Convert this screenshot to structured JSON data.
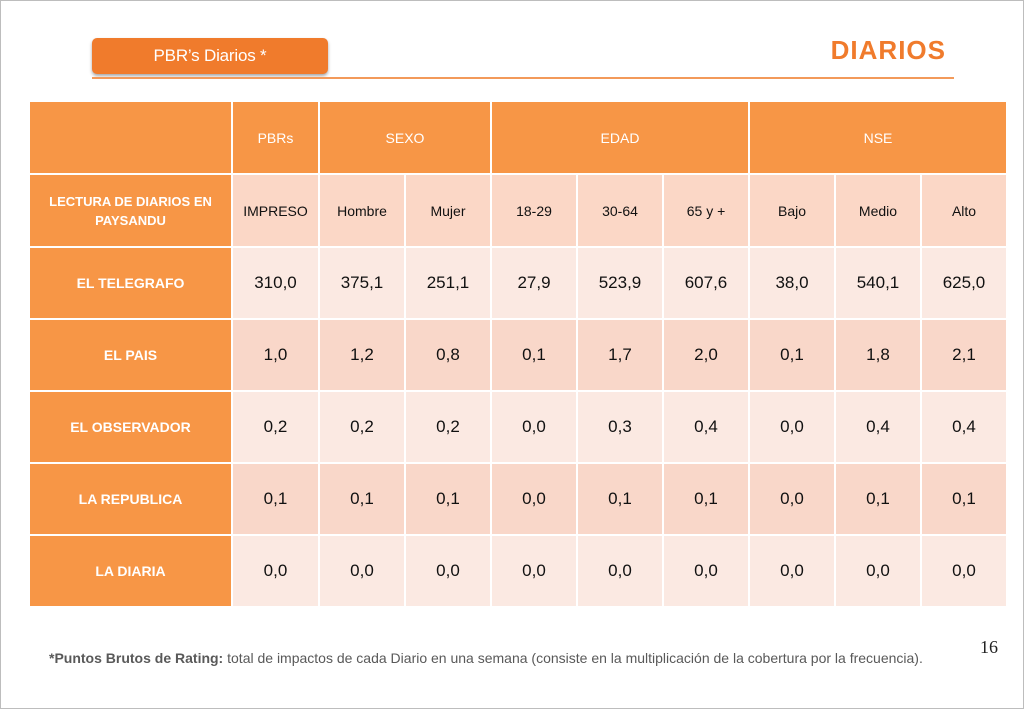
{
  "header": {
    "tag_label": "PBR’s Diarios  *",
    "title": "DIARIOS"
  },
  "table": {
    "group_headers": [
      "PBRs",
      "SEXO",
      "EDAD",
      "NSE"
    ],
    "row_header_label": "LECTURA DE DIARIOS EN PAYSANDU",
    "sub_headers": [
      "IMPRESO",
      "Hombre",
      "Mujer",
      "18-29",
      "30-64",
      "65 y +",
      "Bajo",
      "Medio",
      "Alto"
    ],
    "rows": [
      {
        "name": "EL TELEGRAFO",
        "values": [
          "310,0",
          "375,1",
          "251,1",
          "27,9",
          "523,9",
          "607,6",
          "38,0",
          "540,1",
          "625,0"
        ]
      },
      {
        "name": "EL PAIS",
        "values": [
          "1,0",
          "1,2",
          "0,8",
          "0,1",
          "1,7",
          "2,0",
          "0,1",
          "1,8",
          "2,1"
        ]
      },
      {
        "name": "EL OBSERVADOR",
        "values": [
          "0,2",
          "0,2",
          "0,2",
          "0,0",
          "0,3",
          "0,4",
          "0,0",
          "0,4",
          "0,4"
        ]
      },
      {
        "name": "LA REPUBLICA",
        "values": [
          "0,1",
          "0,1",
          "0,1",
          "0,0",
          "0,1",
          "0,1",
          "0,0",
          "0,1",
          "0,1"
        ]
      },
      {
        "name": "LA DIARIA",
        "values": [
          "0,0",
          "0,0",
          "0,0",
          "0,0",
          "0,0",
          "0,0",
          "0,0",
          "0,0",
          "0,0"
        ]
      }
    ]
  },
  "page_number": "16",
  "footnote": {
    "bold": "*Puntos Brutos de Rating:",
    "text": " total de impactos de cada Diario en una semana (consiste en la multiplicación de la cobertura por la frecuencia)."
  }
}
